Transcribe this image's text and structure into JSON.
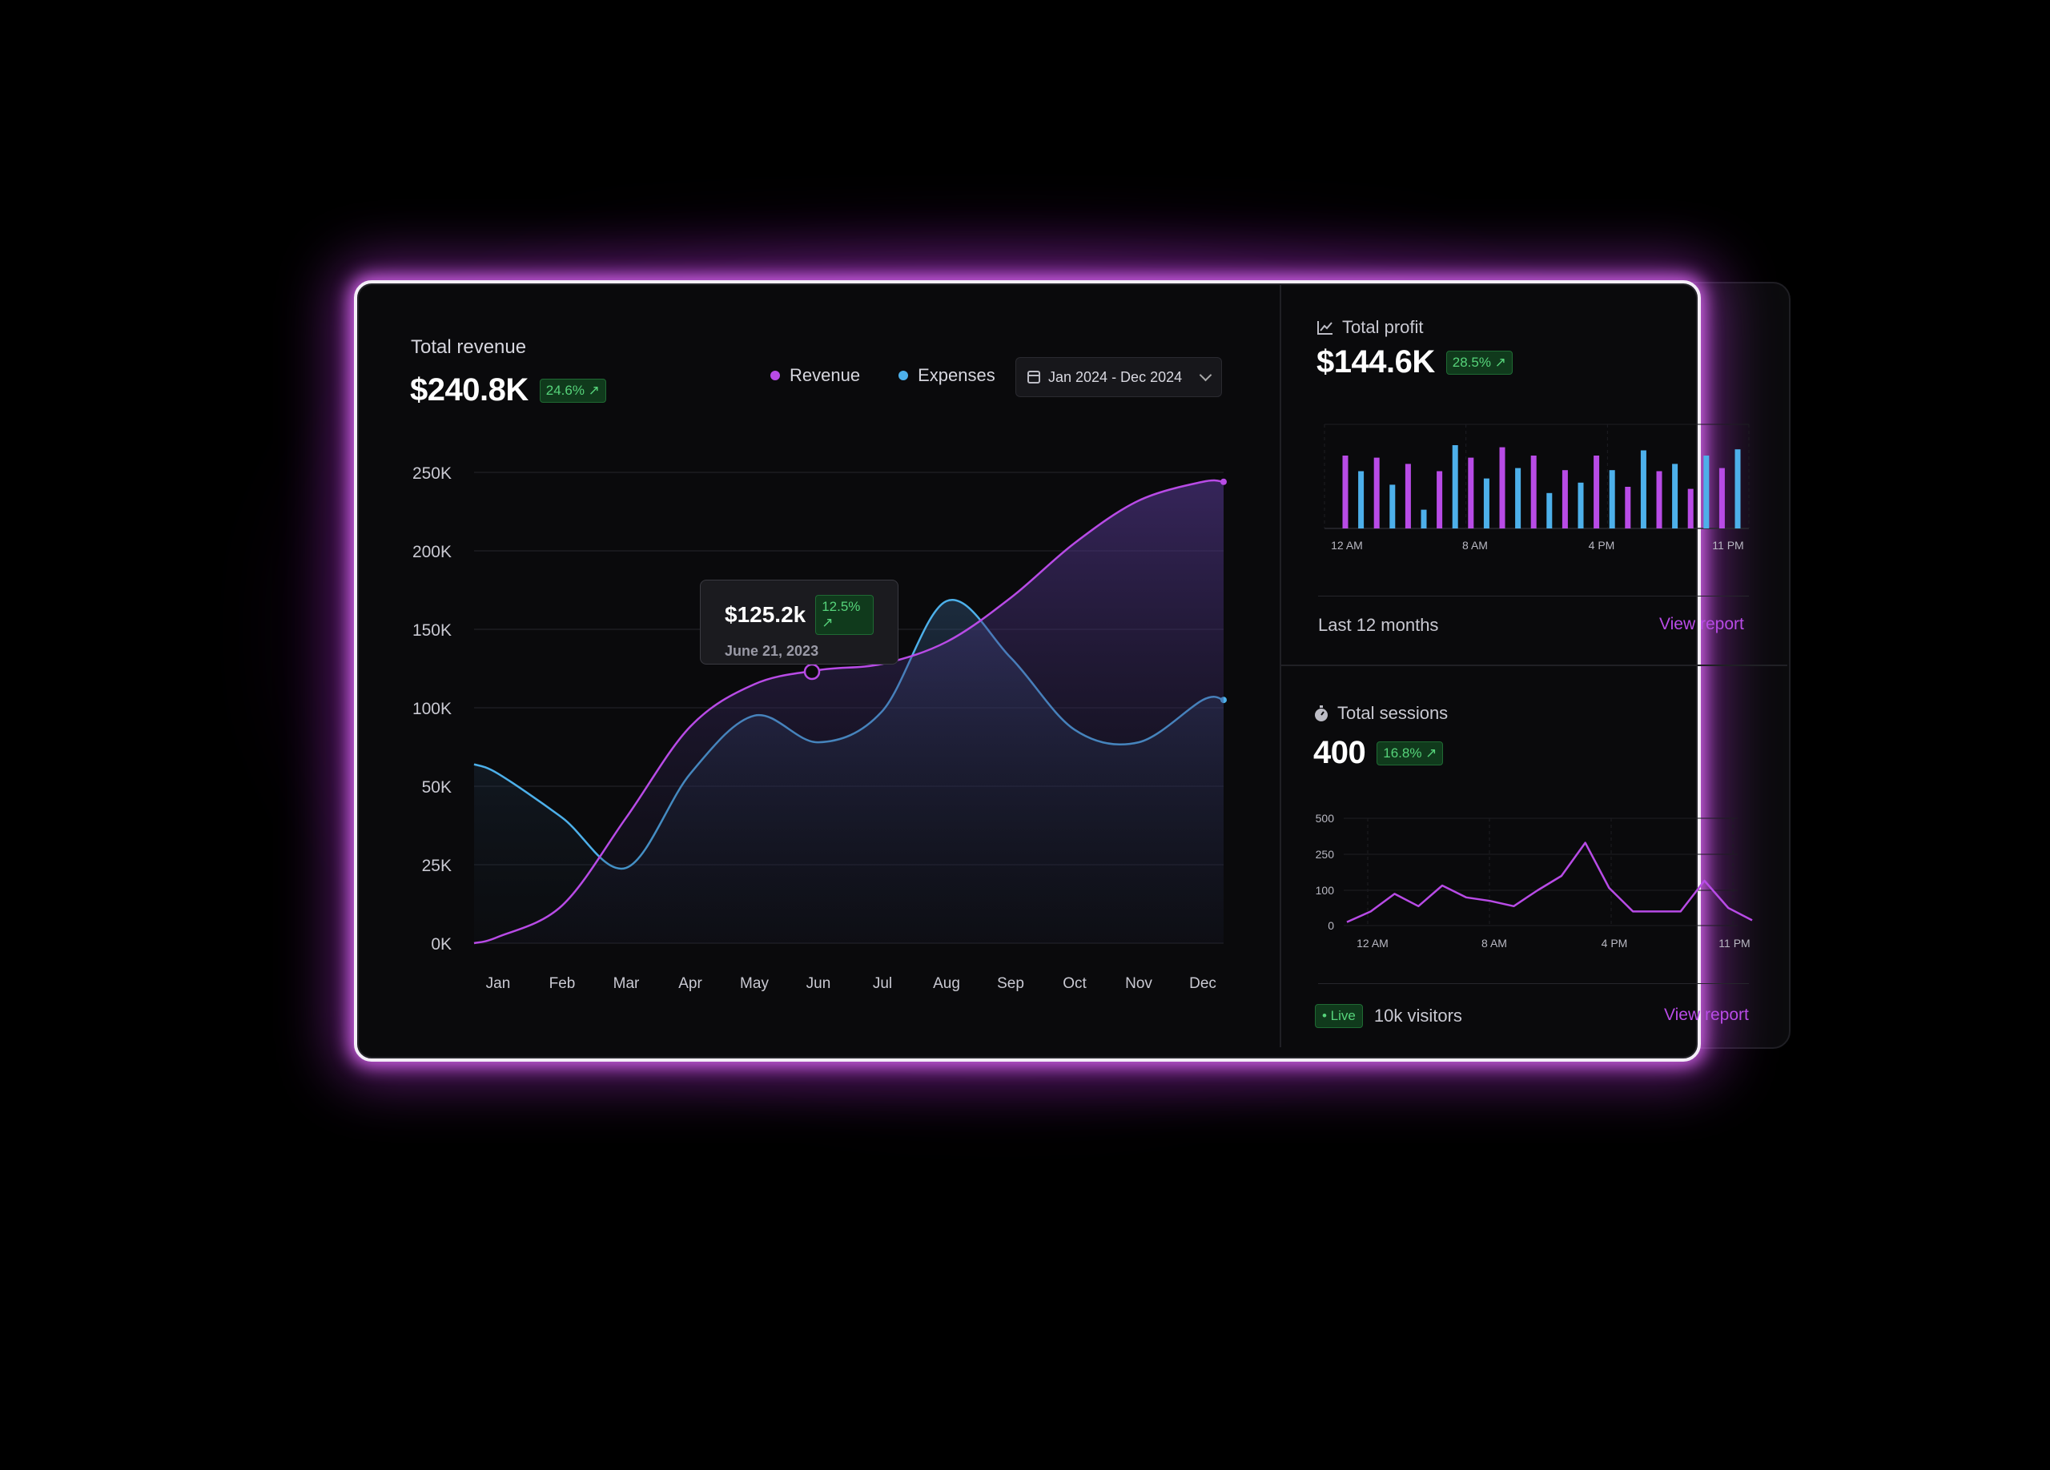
{
  "revenue_card": {
    "title": "Total revenue",
    "value": "$240.8K",
    "change": "24.6% ↗",
    "legend_revenue": "Revenue",
    "legend_expenses": "Expenses",
    "date_range": "Jan 2024 - Dec 2024",
    "tooltip_value": "$125.2k",
    "tooltip_change": "12.5% ↗",
    "tooltip_date": "June 21, 2023"
  },
  "profit_card": {
    "title": "Total profit",
    "value": "$144.6K",
    "change": "28.5% ↗",
    "period": "Last 12 months",
    "link": "View report"
  },
  "sessions_card": {
    "title": "Total sessions",
    "value": "400",
    "change": "16.8% ↗",
    "live": "• Live",
    "visitors": "10k visitors",
    "link": "View report"
  },
  "colors": {
    "revenue": "#b84be6",
    "expenses": "#4db0ea",
    "positive": "#56d37a"
  },
  "chart_data": [
    {
      "type": "area",
      "categories": [
        "Jan",
        "Feb",
        "Mar",
        "Apr",
        "May",
        "Jun",
        "Jul",
        "Aug",
        "Sep",
        "Oct",
        "Nov",
        "Dec"
      ],
      "yticks": [
        "0K",
        "25K",
        "50K",
        "100K",
        "150K",
        "200K",
        "250K"
      ],
      "ylim": [
        0,
        250
      ],
      "series": [
        {
          "name": "Revenue",
          "values": [
            2,
            12,
            40,
            88,
            115,
            124,
            128,
            142,
            170,
            205,
            232,
            244
          ]
        },
        {
          "name": "Expenses",
          "values": [
            58,
            40,
            24,
            58,
            95,
            78,
            98,
            168,
            132,
            86,
            78,
            105
          ]
        }
      ]
    },
    {
      "type": "bar",
      "xticks": [
        "12 AM",
        "8 AM",
        "4 PM",
        "11 PM"
      ],
      "series": [
        {
          "name": "",
          "values": [
            0.7,
            0.55,
            0.68,
            0.42,
            0.62,
            0.18,
            0.55,
            0.8,
            0.68,
            0.48,
            0.78,
            0.58,
            0.7,
            0.34,
            0.56,
            0.44,
            0.7,
            0.56,
            0.4,
            0.75,
            0.55,
            0.62,
            0.38,
            0.7,
            0.58,
            0.76
          ]
        }
      ]
    },
    {
      "type": "line",
      "xticks": [
        "12 AM",
        "8 AM",
        "4 PM",
        "11 PM"
      ],
      "yticks": [
        "0",
        "100",
        "250",
        "500"
      ],
      "series": [
        {
          "name": "",
          "values": [
            10,
            40,
            90,
            55,
            120,
            80,
            70,
            55,
            100,
            160,
            330,
            110,
            40,
            40,
            40,
            140,
            50,
            15
          ]
        }
      ]
    }
  ]
}
